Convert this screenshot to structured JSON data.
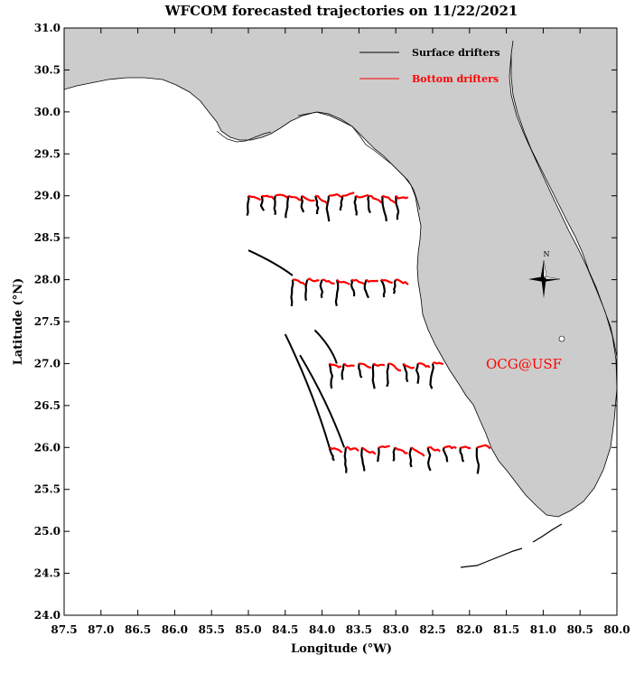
{
  "title": "WFCOM forecasted trajectories on 11/22/2021",
  "axes": {
    "xlabel": "Longitude (°W)",
    "ylabel": "Latitude (°N)",
    "x_ticks": [
      "87.5",
      "87.0",
      "86.5",
      "86.0",
      "85.5",
      "85.0",
      "84.5",
      "84.0",
      "83.5",
      "83.0",
      "82.5",
      "82.0",
      "81.5",
      "81.0",
      "80.5",
      "80.0"
    ],
    "y_ticks": [
      "31.0",
      "30.5",
      "30.0",
      "29.5",
      "29.0",
      "28.5",
      "28.0",
      "27.5",
      "27.0",
      "26.5",
      "26.0",
      "25.5",
      "25.0",
      "24.5",
      "24.0"
    ],
    "xlim": [
      -87.5,
      -80.0
    ],
    "ylim": [
      24.0,
      31.0
    ]
  },
  "legend": {
    "placement": "top-right",
    "items": [
      {
        "label": "Surface drifters",
        "color": "#000000"
      },
      {
        "label": "Bottom drifters",
        "color": "#ff0000"
      }
    ]
  },
  "watermark": "OCG@USF",
  "compass": {
    "label": "N"
  },
  "colors": {
    "land": "#cccccc",
    "surface": "#000000",
    "bottom": "#ff0000"
  },
  "chart_data": {
    "type": "map",
    "rows": [
      {
        "lat": 29.0,
        "lon_start": -85.0,
        "lon_end": -83.0,
        "count": 12
      },
      {
        "lat": 28.0,
        "lon_start": -84.4,
        "lon_end": -83.0,
        "count": 8
      },
      {
        "lat": 27.0,
        "lon_start": -83.9,
        "lon_end": -82.5,
        "count": 8
      },
      {
        "lat": 26.0,
        "lon_start": -83.9,
        "lon_end": -81.9,
        "count": 10
      }
    ]
  }
}
